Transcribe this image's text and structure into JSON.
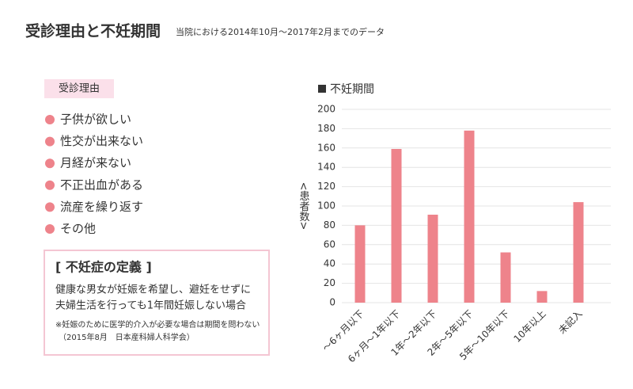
{
  "header": {
    "title": "受診理由と不妊期間",
    "subtitle": "当院における2014年10月～2017年2月までのデータ"
  },
  "reasons": {
    "title": "受診理由",
    "items": [
      "子供が欲しい",
      "性交が出来ない",
      "月経が来ない",
      "不正出血がある",
      "流産を繰り返す",
      "その他"
    ]
  },
  "definition": {
    "title": "[ 不妊症の定義 ]",
    "body": [
      "健康な男女が妊娠を希望し、避妊をせずに",
      "夫婦生活を行っても1年間妊娠しない場合"
    ],
    "note": [
      "※妊娠のために医学的介入が必要な場合は期間を問わない",
      "（2015年8月　日本産科婦人科学会）"
    ]
  },
  "chart_data": {
    "type": "bar",
    "title": "不妊期間",
    "y_label": "<患者数>",
    "categories": [
      "～6ヶ月以下",
      "6ヶ月～1年以下",
      "1年～2年以下",
      "2年～5年以下",
      "5年～10年以下",
      "10年以上",
      "未記入"
    ],
    "values": [
      80,
      159,
      91,
      178,
      52,
      12,
      104
    ],
    "color": "#ee838b",
    "ylim": [
      0,
      200
    ],
    "yticks": [
      0,
      20,
      40,
      60,
      80,
      100,
      120,
      140,
      160,
      180,
      200
    ],
    "grid": true
  }
}
